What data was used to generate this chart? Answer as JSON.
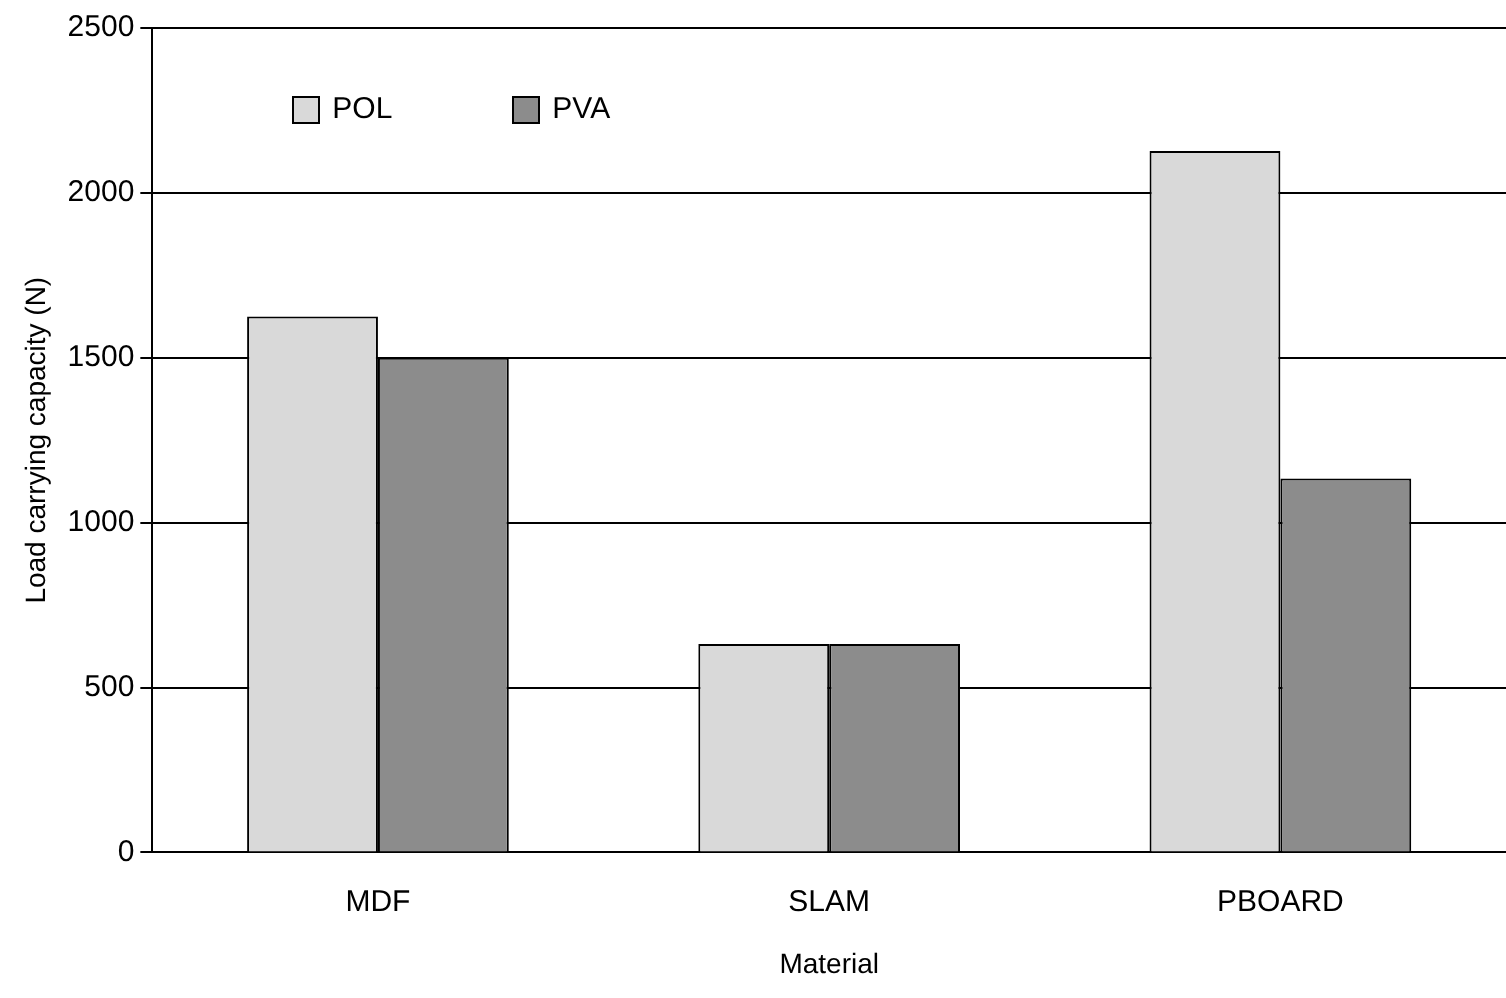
{
  "chart_data": {
    "type": "bar",
    "xlabel": "Material",
    "ylabel": "Load carrying capacity (N)",
    "categories": [
      "MDF",
      "SLAM",
      "PBOARD"
    ],
    "series": [
      {
        "name": "POL",
        "color": "#d9d9d9",
        "values": [
          1625,
          632,
          2127
        ]
      },
      {
        "name": "PVA",
        "color": "#8c8c8c",
        "values": [
          1500,
          632,
          1134
        ]
      }
    ],
    "ylim": [
      0,
      2500
    ],
    "yticks": [
      0,
      500,
      1000,
      1500,
      2000,
      2500
    ],
    "grid": "y",
    "legend": "top left"
  }
}
